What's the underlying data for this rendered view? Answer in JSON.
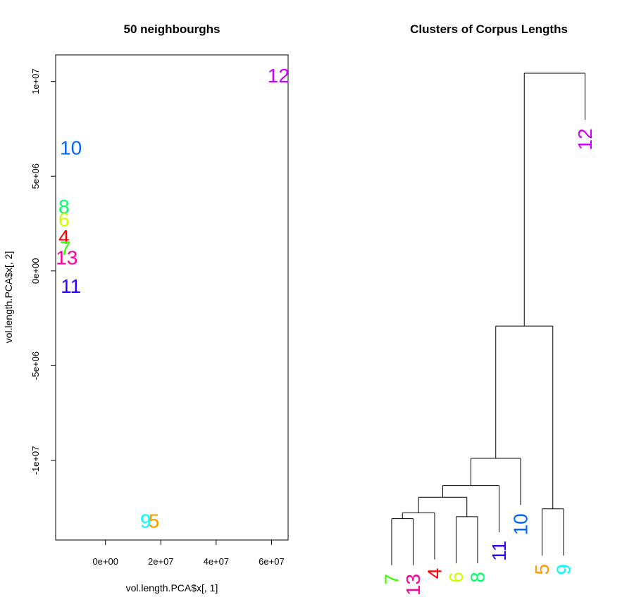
{
  "chart_data": [
    {
      "type": "scatter",
      "title": "50 neighbourghs",
      "xlabel": "vol.length.PCA$x[, 1]",
      "ylabel": "vol.length.PCA$x[, 2]",
      "xlim": [
        -18000000,
        66000000
      ],
      "ylim": [
        -14200000,
        11400000
      ],
      "xticks": [
        0,
        20000000,
        40000000,
        60000000
      ],
      "xtick_labels": [
        "0e+00",
        "2e+07",
        "4e+07",
        "6e+07"
      ],
      "yticks": [
        -10000000,
        -5000000,
        0,
        5000000,
        10000000
      ],
      "ytick_labels": [
        "-1e+07",
        "-5e+06",
        "0e+00",
        "5e+06",
        "1e+07"
      ],
      "points": [
        {
          "label": "12",
          "x": 62500000,
          "y": 10300000,
          "color": "#cc00ff"
        },
        {
          "label": "10",
          "x": -12500000,
          "y": 6500000,
          "color": "#0066ff"
        },
        {
          "label": "8",
          "x": -15000000,
          "y": 3400000,
          "color": "#00ff66"
        },
        {
          "label": "6",
          "x": -15000000,
          "y": 2700000,
          "color": "#ccff00"
        },
        {
          "label": "4",
          "x": -15000000,
          "y": 1800000,
          "color": "#ff0000"
        },
        {
          "label": "7",
          "x": -14500000,
          "y": 1200000,
          "color": "#33ff00"
        },
        {
          "label": "13",
          "x": -14000000,
          "y": 700000,
          "color": "#ff0099"
        },
        {
          "label": "11",
          "x": -12500000,
          "y": -800000,
          "color": "#3300ff"
        },
        {
          "label": "9",
          "x": 14500000,
          "y": -13200000,
          "color": "#00ffff"
        },
        {
          "label": "5",
          "x": 17500000,
          "y": -13200000,
          "color": "#ff9900"
        }
      ]
    },
    {
      "type": "dendrogram",
      "title": "Clusters of Corpus Lengths",
      "leaves": [
        {
          "label": "7",
          "color": "#33ff00"
        },
        {
          "label": "13",
          "color": "#ff0099"
        },
        {
          "label": "4",
          "color": "#ff0000"
        },
        {
          "label": "6",
          "color": "#ccff00"
        },
        {
          "label": "8",
          "color": "#00ff66"
        },
        {
          "label": "11",
          "color": "#3300ff"
        },
        {
          "label": "10",
          "color": "#0066ff"
        },
        {
          "label": "5",
          "color": "#ff9900"
        },
        {
          "label": "9",
          "color": "#00ffff"
        },
        {
          "label": "12",
          "color": "#cc00ff"
        }
      ],
      "merges": [
        {
          "left": "7",
          "right": "13",
          "height": 1.1
        },
        {
          "left": "6",
          "right": "8",
          "height": 1.2
        },
        {
          "left": "5",
          "right": "9",
          "height": 1.6
        },
        {
          "left": "m1",
          "right": "4",
          "height": 1.4
        },
        {
          "left": "m4",
          "right": "m2",
          "height": 2.2
        },
        {
          "left": "m5",
          "right": "11",
          "height": 2.8
        },
        {
          "left": "m6",
          "right": "10",
          "height": 4.2
        },
        {
          "left": "m7",
          "right": "m3",
          "height": 11.0
        },
        {
          "left": "m8",
          "right": "12",
          "height": 24.0
        }
      ]
    }
  ]
}
